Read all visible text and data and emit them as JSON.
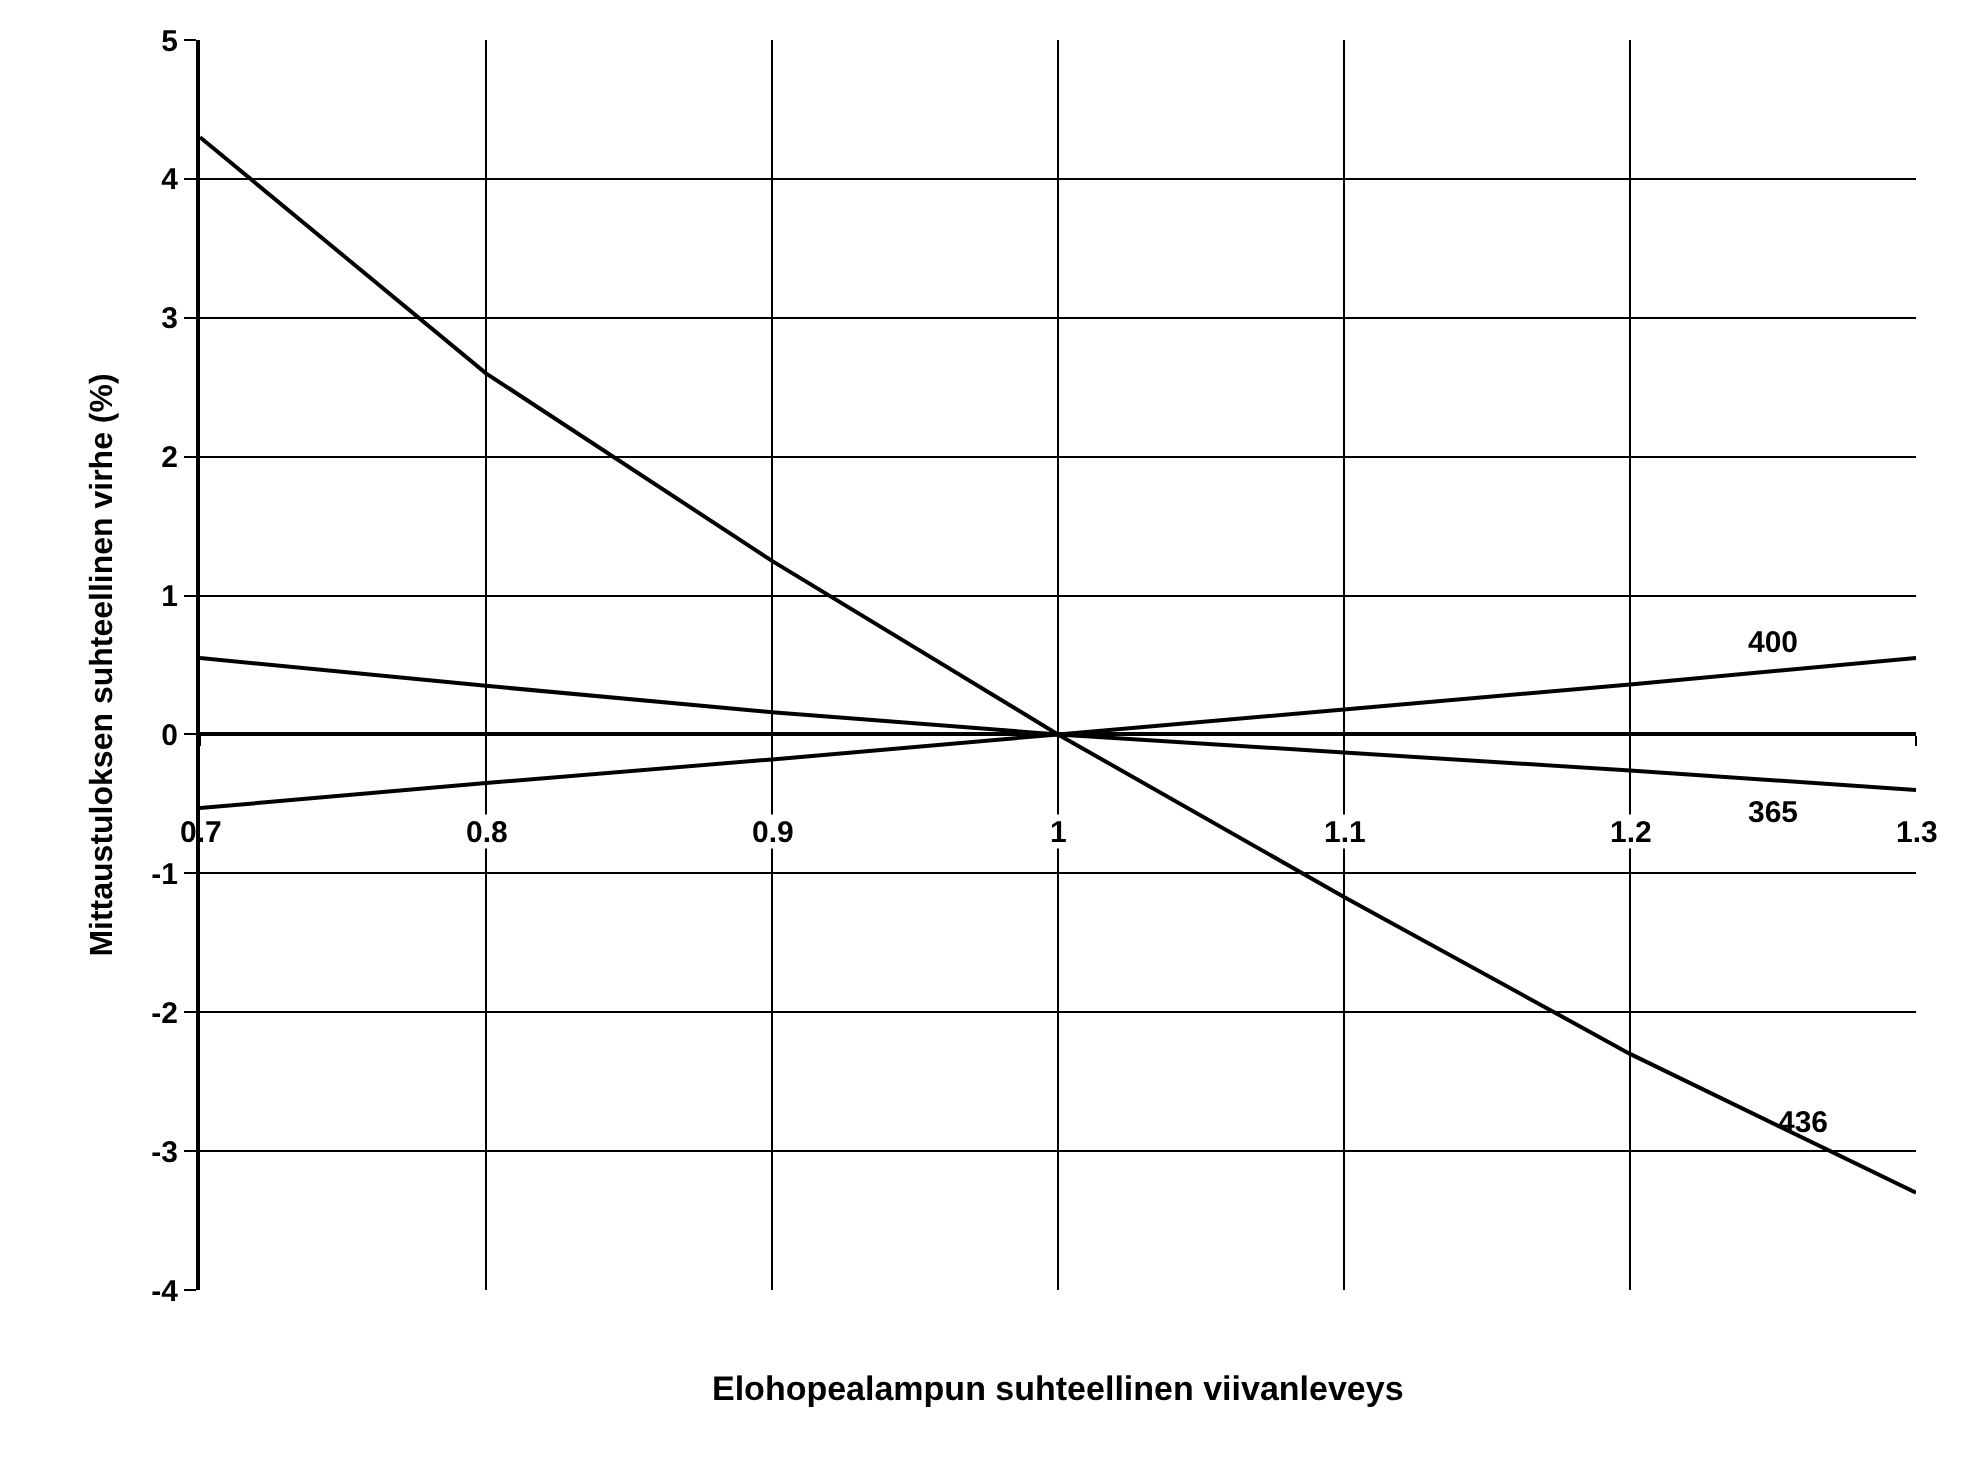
{
  "chart_data": {
    "type": "line",
    "xlabel": "Elohopealampun suhteellinen viivanleveys",
    "ylabel": "Mittaustuloksen suhteellinen virhe (%)",
    "x": [
      0.7,
      0.8,
      0.9,
      1.0,
      1.1,
      1.2,
      1.3
    ],
    "series": [
      {
        "name": "400",
        "color": "#000000",
        "values": [
          -0.53,
          -0.35,
          -0.18,
          0,
          0.18,
          0.36,
          0.55
        ]
      },
      {
        "name": "365",
        "color": "#000000",
        "values": [
          0.55,
          0.35,
          0.16,
          0,
          -0.13,
          -0.26,
          -0.4
        ]
      },
      {
        "name": "436",
        "color": "#000000",
        "values": [
          4.3,
          2.6,
          1.25,
          0,
          -1.17,
          -2.3,
          -3.3
        ]
      }
    ],
    "xlim": [
      0.7,
      1.3
    ],
    "xticks": [
      {
        "value": 0.7,
        "label": "0.7"
      },
      {
        "value": 0.8,
        "label": "0.8"
      },
      {
        "value": 0.9,
        "label": "0.9"
      },
      {
        "value": 1.0,
        "label": "1"
      },
      {
        "value": 1.1,
        "label": "1.1"
      },
      {
        "value": 1.2,
        "label": "1.2"
      },
      {
        "value": 1.3,
        "label": "1.3"
      }
    ],
    "ylim": [
      -4,
      5
    ],
    "yticks": [
      -4,
      -3,
      -2,
      -1,
      0,
      1,
      2,
      3,
      4,
      5
    ],
    "grid": true,
    "legend": false,
    "marker": "none",
    "line_style": "solid"
  }
}
